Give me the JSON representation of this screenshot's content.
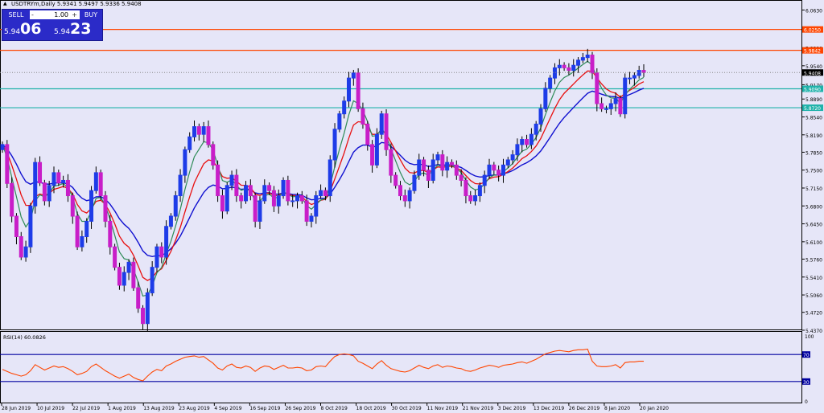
{
  "header": {
    "symbol_line": "USDTRYm,Daily  5.9341 5.9497 5.9336 5.9408",
    "collapse_glyph": "▲"
  },
  "trade_panel": {
    "sell_label": "SELL",
    "buy_label": "BUY",
    "lot_value": "1.00",
    "lot_minus": "-",
    "lot_plus": "+",
    "sell_price_small": "5.94",
    "sell_price_big": "06",
    "buy_price_small": "5.94",
    "buy_price_big": "23"
  },
  "colors": {
    "background": "#e6e6f8",
    "bull_candle": "#1e3ce8",
    "bear_candle": "#c81ec8",
    "ma_fast": "#2e8b57",
    "ma_mid": "#e81010",
    "ma_slow": "#1010d0",
    "hline_red": "#ff4500",
    "hline_cyan": "#20b2aa",
    "rsi_line": "#ff4500",
    "rsi_level": "#0000a0"
  },
  "chart_data": {
    "type": "candlestick",
    "title": "USDTRYm,Daily",
    "ohlc_last": {
      "open": 5.9341,
      "high": 5.9497,
      "low": 5.9336,
      "close": 5.9408
    },
    "y_ticks": [
      "6.0630",
      "6.0260",
      "5.9890",
      "5.9540",
      "5.9170",
      "5.8890",
      "5.8540",
      "5.8190",
      "5.7850",
      "5.7500",
      "5.7150",
      "5.6800",
      "5.6450",
      "5.6100",
      "5.5760",
      "5.5410",
      "5.5060",
      "5.4720",
      "5.4370"
    ],
    "ylim": [
      5.437,
      6.07
    ],
    "x_ticks": [
      "28 Jun 2019",
      "10 Jul 2019",
      "22 Jul 2019",
      "1 Aug 2019",
      "13 Aug 2019",
      "23 Aug 2019",
      "4 Sep 2019",
      "16 Sep 2019",
      "26 Sep 2019",
      "8 Oct 2019",
      "18 Oct 2019",
      "30 Oct 2019",
      "11 Nov 2019",
      "21 Nov 2019",
      "3 Dec 2019",
      "13 Dec 2019",
      "26 Dec 2019",
      "8 Jan 2020",
      "20 Jan 2020"
    ],
    "price_labels": [
      {
        "value": 6.025,
        "text": "6.0250",
        "color": "#ff4500"
      },
      {
        "value": 5.9842,
        "text": "5.9842",
        "color": "#ff4500"
      },
      {
        "value": 5.9408,
        "text": "5.9408",
        "color": "#000000"
      },
      {
        "value": 5.909,
        "text": "5.9090",
        "color": "#20b2aa"
      },
      {
        "value": 5.872,
        "text": "5.8720",
        "color": "#20b2aa"
      }
    ],
    "horizontal_lines": [
      {
        "value": 6.025,
        "color": "#ff4500"
      },
      {
        "value": 5.9842,
        "color": "#ff4500"
      },
      {
        "value": 5.909,
        "color": "#20b2aa"
      },
      {
        "value": 5.872,
        "color": "#20b2aa"
      }
    ],
    "closes": [
      5.8,
      5.724,
      5.66,
      5.62,
      5.58,
      5.6,
      5.68,
      5.765,
      5.725,
      5.69,
      5.72,
      5.745,
      5.725,
      5.73,
      5.7,
      5.66,
      5.6,
      5.62,
      5.65,
      5.71,
      5.745,
      5.7,
      5.65,
      5.6,
      5.56,
      5.525,
      5.55,
      5.57,
      5.52,
      5.48,
      5.45,
      5.51,
      5.56,
      5.6,
      5.58,
      5.64,
      5.66,
      5.7,
      5.74,
      5.79,
      5.815,
      5.835,
      5.82,
      5.835,
      5.8,
      5.76,
      5.7,
      5.67,
      5.72,
      5.74,
      5.7,
      5.69,
      5.72,
      5.7,
      5.65,
      5.69,
      5.72,
      5.71,
      5.68,
      5.7,
      5.73,
      5.69,
      5.69,
      5.7,
      5.69,
      5.65,
      5.66,
      5.7,
      5.71,
      5.7,
      5.77,
      5.83,
      5.86,
      5.885,
      5.93,
      5.94,
      5.87,
      5.84,
      5.8,
      5.76,
      5.82,
      5.86,
      5.79,
      5.74,
      5.72,
      5.7,
      5.69,
      5.71,
      5.74,
      5.77,
      5.75,
      5.73,
      5.77,
      5.78,
      5.75,
      5.765,
      5.76,
      5.74,
      5.73,
      5.7,
      5.69,
      5.7,
      5.72,
      5.74,
      5.76,
      5.75,
      5.74,
      5.76,
      5.77,
      5.78,
      5.8,
      5.81,
      5.8,
      5.82,
      5.84,
      5.87,
      5.91,
      5.93,
      5.95,
      5.955,
      5.95,
      5.945,
      5.955,
      5.965,
      5.97,
      5.975,
      5.94,
      5.88,
      5.87,
      5.87,
      5.88,
      5.89,
      5.86,
      5.93,
      5.93,
      5.935,
      5.945,
      5.941
    ],
    "rsi": {
      "label": "RSI(14) 60.0826",
      "levels": [
        70,
        30
      ],
      "level_labels": [
        "70",
        "30"
      ],
      "scale_labels": [
        "100",
        "0"
      ],
      "ylim": [
        0,
        100
      ],
      "values": [
        48,
        45,
        42,
        40,
        38,
        40,
        46,
        55,
        51,
        47,
        50,
        53,
        51,
        52,
        49,
        45,
        40,
        42,
        45,
        52,
        56,
        51,
        46,
        42,
        38,
        35,
        38,
        41,
        36,
        33,
        31,
        38,
        44,
        48,
        46,
        53,
        56,
        60,
        63,
        66,
        67,
        68,
        66,
        67,
        62,
        57,
        50,
        47,
        53,
        56,
        51,
        50,
        53,
        51,
        45,
        50,
        53,
        52,
        48,
        51,
        54,
        50,
        50,
        51,
        50,
        46,
        47,
        52,
        53,
        52,
        60,
        67,
        70,
        71,
        70,
        68,
        60,
        57,
        53,
        49,
        56,
        61,
        54,
        49,
        47,
        45,
        44,
        46,
        50,
        54,
        51,
        49,
        53,
        55,
        51,
        53,
        52,
        50,
        49,
        46,
        45,
        47,
        50,
        52,
        54,
        53,
        51,
        54,
        55,
        56,
        58,
        59,
        57,
        60,
        63,
        67,
        71,
        73,
        75,
        76,
        75,
        74,
        76,
        77,
        77,
        78,
        60,
        53,
        52,
        52,
        53,
        55,
        50,
        58,
        59,
        59,
        60,
        60
      ]
    }
  }
}
